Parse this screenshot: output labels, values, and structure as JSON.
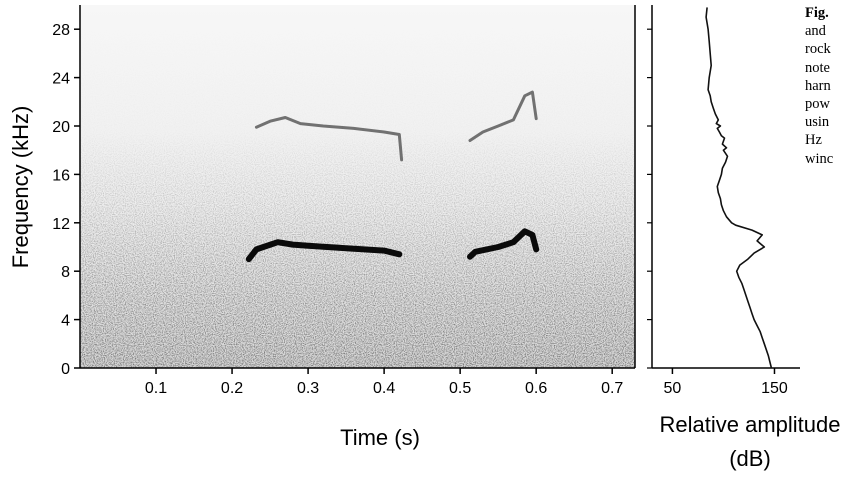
{
  "caption": {
    "lines": [
      "Fig.",
      "and",
      "rock",
      "note",
      "harn",
      "pow",
      "usin",
      "Hz",
      "winc"
    ]
  },
  "chart_data": [
    {
      "type": "heatmap",
      "subtype": "spectrogram",
      "xlabel": "Time (s)",
      "ylabel": "Frequency (kHz)",
      "xlim": [
        0.0,
        0.73
      ],
      "ylim": [
        0,
        30
      ],
      "xticks": [
        0.1,
        0.2,
        0.3,
        0.4,
        0.5,
        0.6,
        0.7
      ],
      "xtick_labels": [
        "0.1",
        "0.2",
        "0.3",
        "0.4",
        "0.5",
        "0.6",
        "0.7"
      ],
      "yticks": [
        0,
        4,
        8,
        12,
        16,
        20,
        24,
        28
      ],
      "ytick_labels": [
        "0",
        "4",
        "8",
        "12",
        "16",
        "20",
        "24",
        "28"
      ],
      "notes": [
        {
          "fundamental": {
            "x": [
              0.222,
              0.232,
              0.26,
              0.28,
              0.3,
              0.35,
              0.4,
              0.42
            ],
            "y": [
              9.0,
              9.8,
              10.4,
              10.2,
              10.1,
              9.9,
              9.7,
              9.4
            ]
          },
          "harmonic": {
            "x": [
              0.232,
              0.25,
              0.27,
              0.29,
              0.32,
              0.36,
              0.4,
              0.42,
              0.423
            ],
            "y": [
              19.9,
              20.4,
              20.7,
              20.2,
              20.0,
              19.8,
              19.5,
              19.3,
              17.2
            ]
          }
        },
        {
          "fundamental": {
            "x": [
              0.513,
              0.52,
              0.55,
              0.57,
              0.585,
              0.595,
              0.6
            ],
            "y": [
              9.2,
              9.6,
              10.0,
              10.4,
              11.3,
              11.0,
              9.8
            ]
          },
          "harmonic": {
            "x": [
              0.513,
              0.53,
              0.55,
              0.57,
              0.585,
              0.595,
              0.6
            ],
            "y": [
              18.8,
              19.5,
              20.0,
              20.5,
              22.5,
              22.8,
              20.6
            ]
          }
        }
      ]
    },
    {
      "type": "line",
      "subtype": "power-spectrum",
      "xlabel": "Relative amplitude (dB)",
      "xlim": [
        30,
        175
      ],
      "ylim": [
        0,
        30
      ],
      "xticks": [
        50,
        150
      ],
      "xtick_labels": [
        "50",
        "150"
      ],
      "series": [
        {
          "x": [
            84,
            83,
            85,
            86,
            87,
            88,
            86,
            85,
            87,
            88,
            90,
            92,
            95,
            93,
            97,
            94,
            96,
            98,
            101,
            99,
            103,
            100,
            104,
            102,
            99,
            98,
            96,
            94,
            95,
            97,
            98,
            100,
            103,
            108,
            112,
            128,
            138,
            133,
            140,
            130,
            124,
            116,
            113,
            115,
            118,
            120,
            122,
            124,
            126,
            128,
            130,
            133,
            136,
            138,
            140,
            144,
            147
          ],
          "y": [
            29.8,
            29.0,
            28.0,
            27.0,
            26.0,
            25.0,
            24.0,
            23.0,
            22.5,
            22.0,
            21.5,
            21.0,
            20.5,
            20.2,
            20.0,
            19.8,
            19.5,
            19.2,
            19.0,
            18.5,
            18.2,
            18.0,
            17.5,
            17.0,
            16.5,
            16.0,
            15.5,
            15.0,
            14.5,
            14.0,
            13.5,
            13.0,
            12.5,
            12.0,
            11.8,
            11.4,
            11.0,
            10.5,
            10.0,
            9.5,
            9.0,
            8.5,
            8.0,
            7.5,
            7.0,
            6.5,
            6.0,
            5.5,
            5.0,
            4.5,
            4.0,
            3.5,
            3.0,
            2.5,
            2.0,
            1.0,
            0.0
          ]
        }
      ]
    }
  ]
}
